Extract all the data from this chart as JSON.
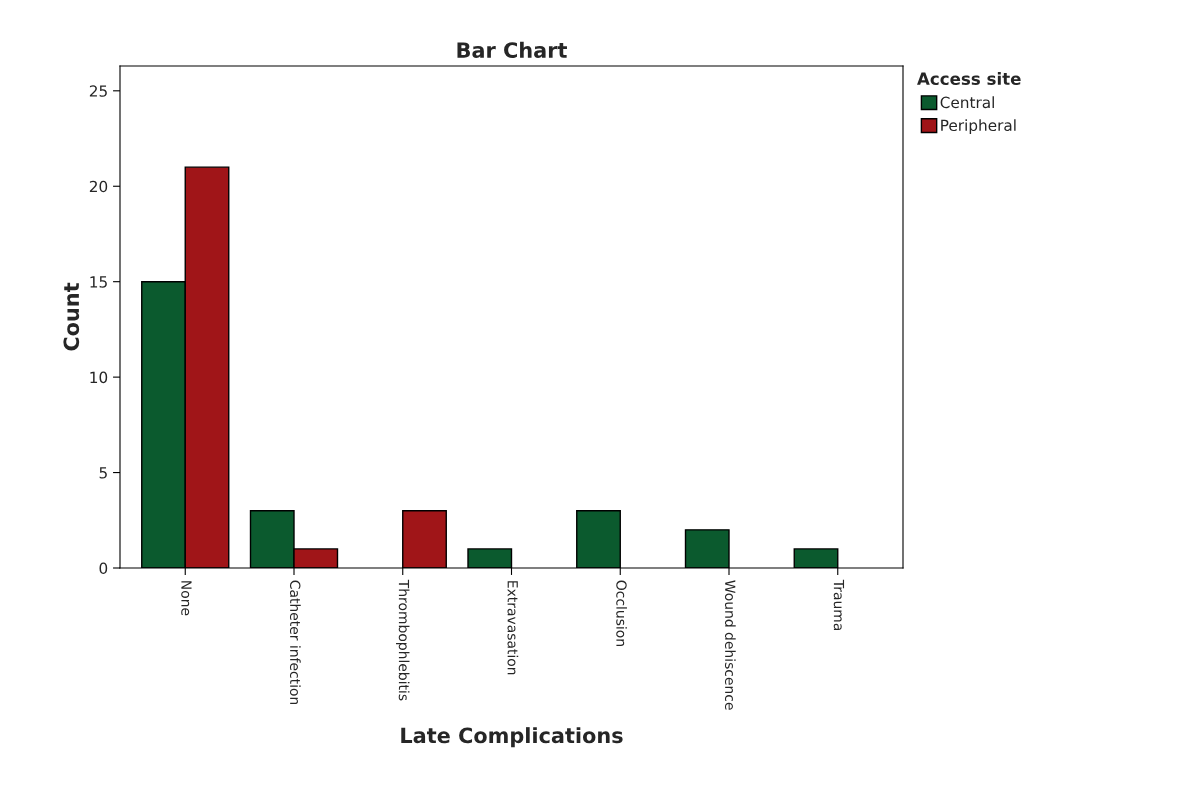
{
  "chart_data": {
    "type": "bar",
    "title": "Bar Chart",
    "xlabel": "Late Complications",
    "ylabel": "Count",
    "legend_title": "Access site",
    "categories": [
      "None",
      "Catheter infection",
      "Thrombophlebitis",
      "Extravasation",
      "Occlusion",
      "Wound dehiscence",
      "Trauma"
    ],
    "series": [
      {
        "name": "Central",
        "color": "#0b5a2e",
        "values": [
          15,
          3,
          null,
          1,
          3,
          2,
          1
        ]
      },
      {
        "name": "Peripheral",
        "color": "#a01518",
        "values": [
          21,
          1,
          3,
          null,
          null,
          null,
          null
        ]
      }
    ],
    "ylim": [
      0,
      26.3
    ],
    "yticks": [
      0,
      5,
      10,
      15,
      20,
      25
    ],
    "grid": false,
    "legend": "top right"
  }
}
